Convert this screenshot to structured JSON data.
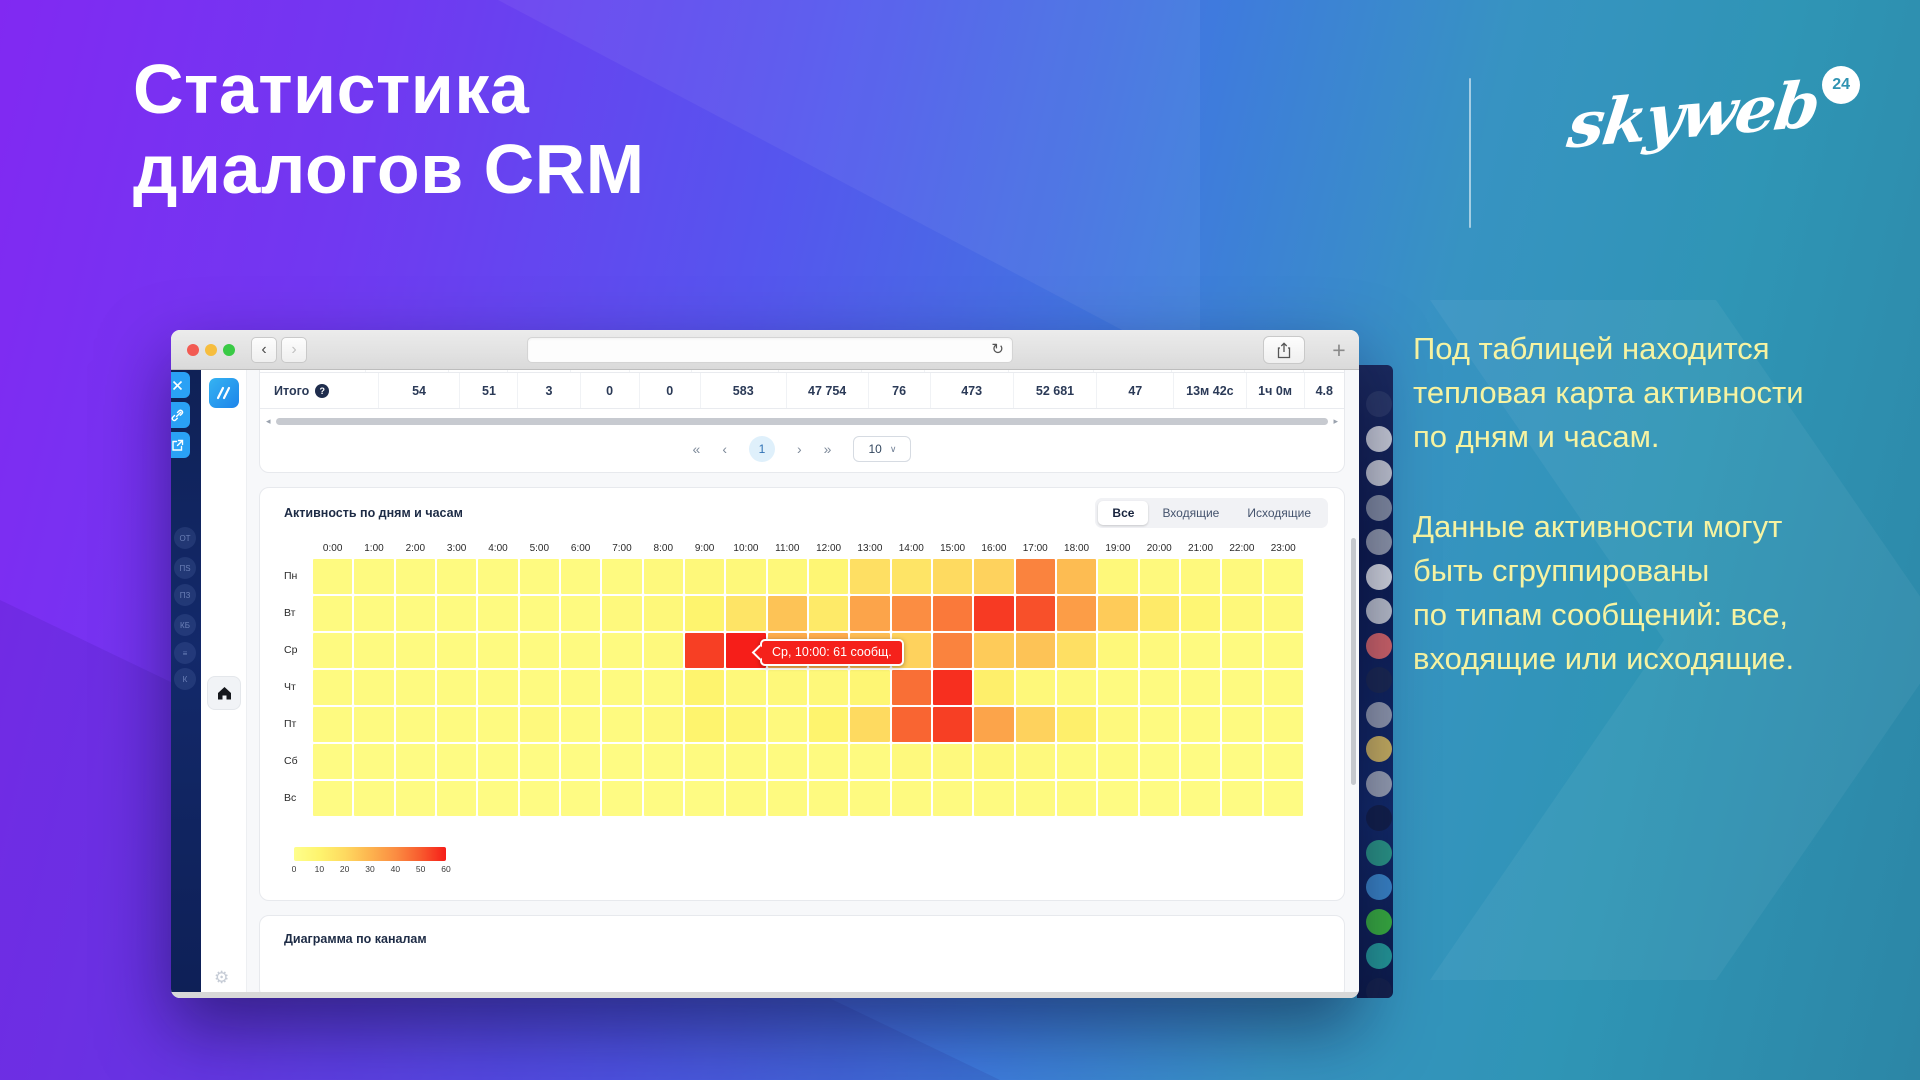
{
  "slide": {
    "title": "Статистика\nдиалогов CRM",
    "paragraph1": "Под таблицей находится\nтепловая карта активности\nпо дням и часам.",
    "paragraph2": "Данные активности могут\nбыть сгруппированы\nпо типам сообщений: все,\nвходящие или исходящие.",
    "logo_text": "skyweb",
    "logo_badge": "24"
  },
  "browser": {
    "url": ""
  },
  "totals": {
    "label": "Итого",
    "info": "?",
    "values": [
      "54",
      "51",
      "3",
      "0",
      "0",
      "583",
      "47 754",
      "76",
      "473",
      "52 681",
      "47",
      "13м 42с",
      "1ч 0м",
      "4.8"
    ]
  },
  "pagination": {
    "first": "«",
    "prev": "‹",
    "page": "1",
    "next": "›",
    "last": "»",
    "page_size": "10"
  },
  "heatmap": {
    "title": "Активность по дням и часам",
    "filters": [
      "Все",
      "Входящие",
      "Исходящие"
    ],
    "active_filter": 0,
    "hours": [
      "0:00",
      "1:00",
      "2:00",
      "3:00",
      "4:00",
      "5:00",
      "6:00",
      "7:00",
      "8:00",
      "9:00",
      "10:00",
      "11:00",
      "12:00",
      "13:00",
      "14:00",
      "15:00",
      "16:00",
      "17:00",
      "18:00",
      "19:00",
      "20:00",
      "21:00",
      "22:00",
      "23:00"
    ],
    "days": [
      "Пн",
      "Вт",
      "Ср",
      "Чт",
      "Пт",
      "Сб",
      "Вс"
    ],
    "values": [
      [
        4,
        4,
        4,
        4,
        4,
        4,
        4,
        4,
        5,
        6,
        6,
        6,
        8,
        18,
        16,
        20,
        22,
        42,
        28,
        6,
        5,
        5,
        5,
        4
      ],
      [
        4,
        4,
        4,
        4,
        4,
        4,
        4,
        5,
        6,
        10,
        16,
        26,
        14,
        34,
        40,
        44,
        56,
        52,
        36,
        24,
        14,
        8,
        6,
        5
      ],
      [
        4,
        4,
        4,
        4,
        4,
        4,
        4,
        4,
        5,
        55,
        61,
        32,
        32,
        28,
        22,
        42,
        24,
        26,
        18,
        6,
        5,
        4,
        4,
        4
      ],
      [
        4,
        4,
        4,
        4,
        4,
        4,
        4,
        4,
        4,
        10,
        6,
        6,
        6,
        8,
        46,
        58,
        12,
        6,
        5,
        4,
        4,
        4,
        4,
        4
      ],
      [
        4,
        4,
        4,
        4,
        4,
        5,
        4,
        4,
        5,
        10,
        8,
        5,
        10,
        20,
        48,
        55,
        34,
        22,
        12,
        5,
        4,
        4,
        4,
        4
      ],
      [
        3,
        3,
        3,
        3,
        3,
        3,
        3,
        3,
        3,
        4,
        4,
        4,
        4,
        4,
        5,
        5,
        6,
        5,
        4,
        4,
        3,
        3,
        3,
        3
      ],
      [
        3,
        3,
        3,
        3,
        3,
        3,
        3,
        3,
        3,
        3,
        4,
        4,
        4,
        4,
        4,
        4,
        4,
        4,
        4,
        3,
        3,
        3,
        3,
        3
      ]
    ],
    "tooltip": {
      "text": "Ср, 10:00: 61 сообщ.",
      "day_index": 2,
      "hour_index": 10
    },
    "legend_ticks": [
      "0",
      "10",
      "20",
      "30",
      "40",
      "50",
      "60"
    ],
    "scale": {
      "min": 0,
      "max": 60,
      "min_color": "#fefe8c",
      "max_color": "#f61e19"
    }
  },
  "channels": {
    "title": "Диаграмма по каналам"
  },
  "sidebar": {
    "faint_items": [
      "ОТ",
      "ПЅ",
      "ПЗ",
      "КБ",
      "≡",
      "К"
    ]
  },
  "right_strip": {
    "circle_colors": [
      "#2b3a68",
      "#d8dce2",
      "#cfd3da",
      "#8b94a6",
      "#99a1b0",
      "#e3e6ea",
      "#c9cdd5",
      "#e26a6a",
      "#1c2950",
      "#9aa2b2",
      "#d9bd5f",
      "#a3aab8",
      "#131f47",
      "#2ea189",
      "#3e8ed0",
      "#3dbb3d",
      "#27a49e",
      "#16234c"
    ]
  }
}
